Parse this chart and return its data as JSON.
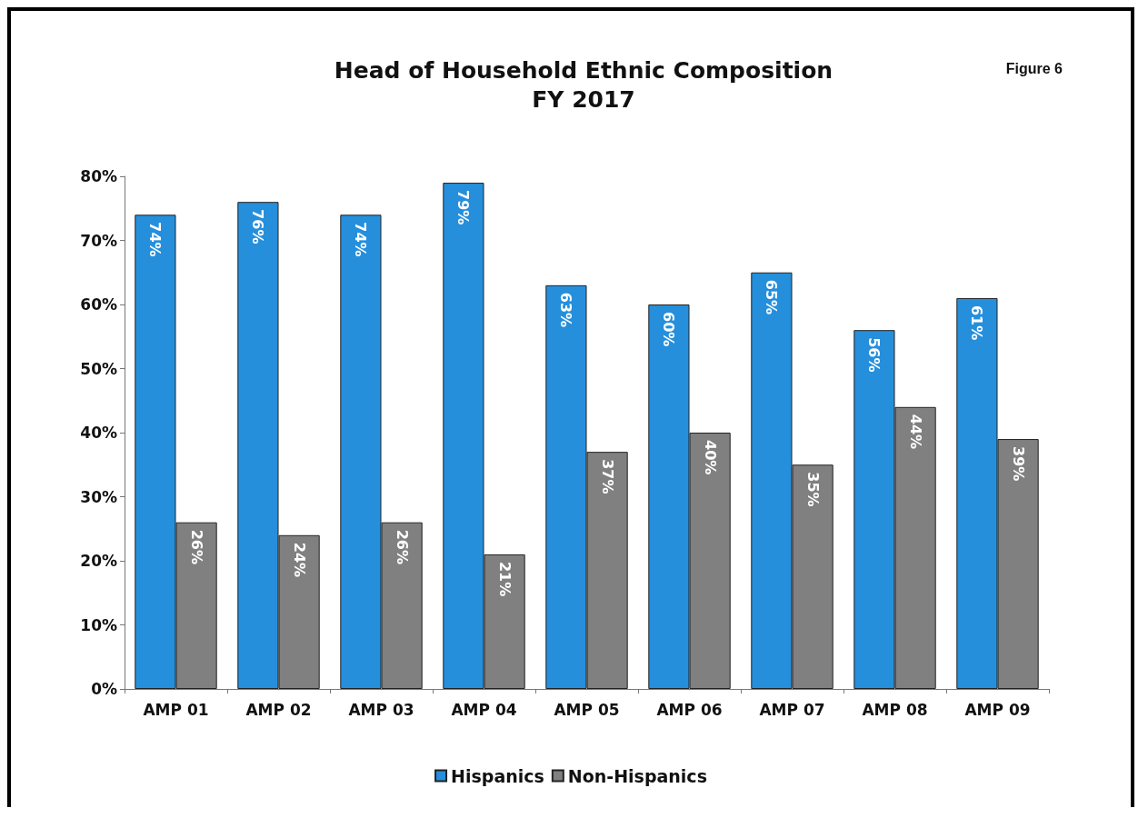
{
  "chart_data": {
    "type": "bar",
    "title": "Head of Household Ethnic Composition\nFY 2017",
    "annotations": [
      "Figure 6"
    ],
    "categories": [
      "AMP 01",
      "AMP 02",
      "AMP 03",
      "AMP 04",
      "AMP 05",
      "AMP 06",
      "AMP 07",
      "AMP 08",
      "AMP 09"
    ],
    "series": [
      {
        "name": "Hispanics",
        "color": "#258fdc",
        "values": [
          74,
          76,
          74,
          79,
          63,
          60,
          65,
          56,
          61
        ],
        "value_labels": [
          "74%",
          "76%",
          "74%",
          "79%",
          "63%",
          "60%",
          "65%",
          "56%",
          "61%"
        ]
      },
      {
        "name": "Non-Hispanics",
        "color": "#808080",
        "values": [
          26,
          24,
          26,
          21,
          37,
          40,
          35,
          44,
          39
        ],
        "value_labels": [
          "26%",
          "24%",
          "26%",
          "21%",
          "37%",
          "40%",
          "35%",
          "44%",
          "39%"
        ]
      }
    ],
    "ylim": [
      0,
      80
    ],
    "yticks": [
      {
        "value": 0,
        "label": "0%"
      },
      {
        "value": 10,
        "label": "10%"
      },
      {
        "value": 20,
        "label": "20%"
      },
      {
        "value": 30,
        "label": "30%"
      },
      {
        "value": 40,
        "label": "40%"
      },
      {
        "value": 50,
        "label": "50%"
      },
      {
        "value": 60,
        "label": "60%"
      },
      {
        "value": 70,
        "label": "70%"
      },
      {
        "value": 80,
        "label": "80%"
      }
    ],
    "grid": false,
    "legend": "bottom"
  }
}
